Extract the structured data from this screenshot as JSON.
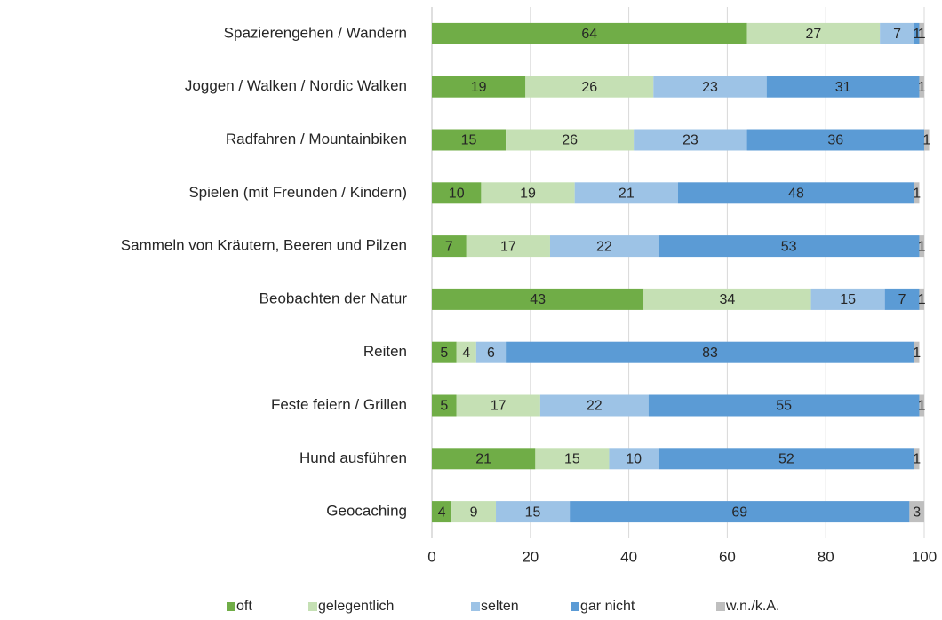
{
  "chart_data": {
    "type": "bar",
    "orientation": "horizontal",
    "stacked": true,
    "categories": [
      "Spazierengehen / Wandern",
      "Joggen / Walken / Nordic Walken",
      "Radfahren / Mountainbiken",
      "Spielen (mit Freunden / Kindern)",
      "Sammeln von Kräutern, Beeren und Pilzen",
      "Beobachten der Natur",
      "Reiten",
      "Feste feiern / Grillen",
      "Hund ausführen",
      "Geocaching"
    ],
    "series": [
      {
        "name": "oft",
        "color": "#70ad47",
        "values": [
          64,
          19,
          15,
          10,
          7,
          43,
          5,
          5,
          21,
          4
        ]
      },
      {
        "name": "gelegentlich",
        "color": "#c5e0b4",
        "values": [
          27,
          26,
          26,
          19,
          17,
          34,
          4,
          17,
          15,
          9
        ]
      },
      {
        "name": "selten",
        "color": "#9dc3e6",
        "values": [
          7,
          23,
          23,
          21,
          22,
          15,
          6,
          22,
          10,
          15
        ]
      },
      {
        "name": "gar nicht",
        "color": "#5b9bd5",
        "values": [
          1,
          31,
          36,
          48,
          53,
          7,
          83,
          55,
          52,
          69
        ]
      },
      {
        "name": "w.n./k.A.",
        "color": "#bfbfbf",
        "values": [
          1,
          1,
          1,
          1,
          1,
          1,
          1,
          1,
          1,
          3
        ]
      }
    ],
    "xlim": [
      0,
      100
    ],
    "xticks": [
      0,
      20,
      40,
      60,
      80,
      100
    ],
    "grid": true,
    "legend": "bottom"
  }
}
